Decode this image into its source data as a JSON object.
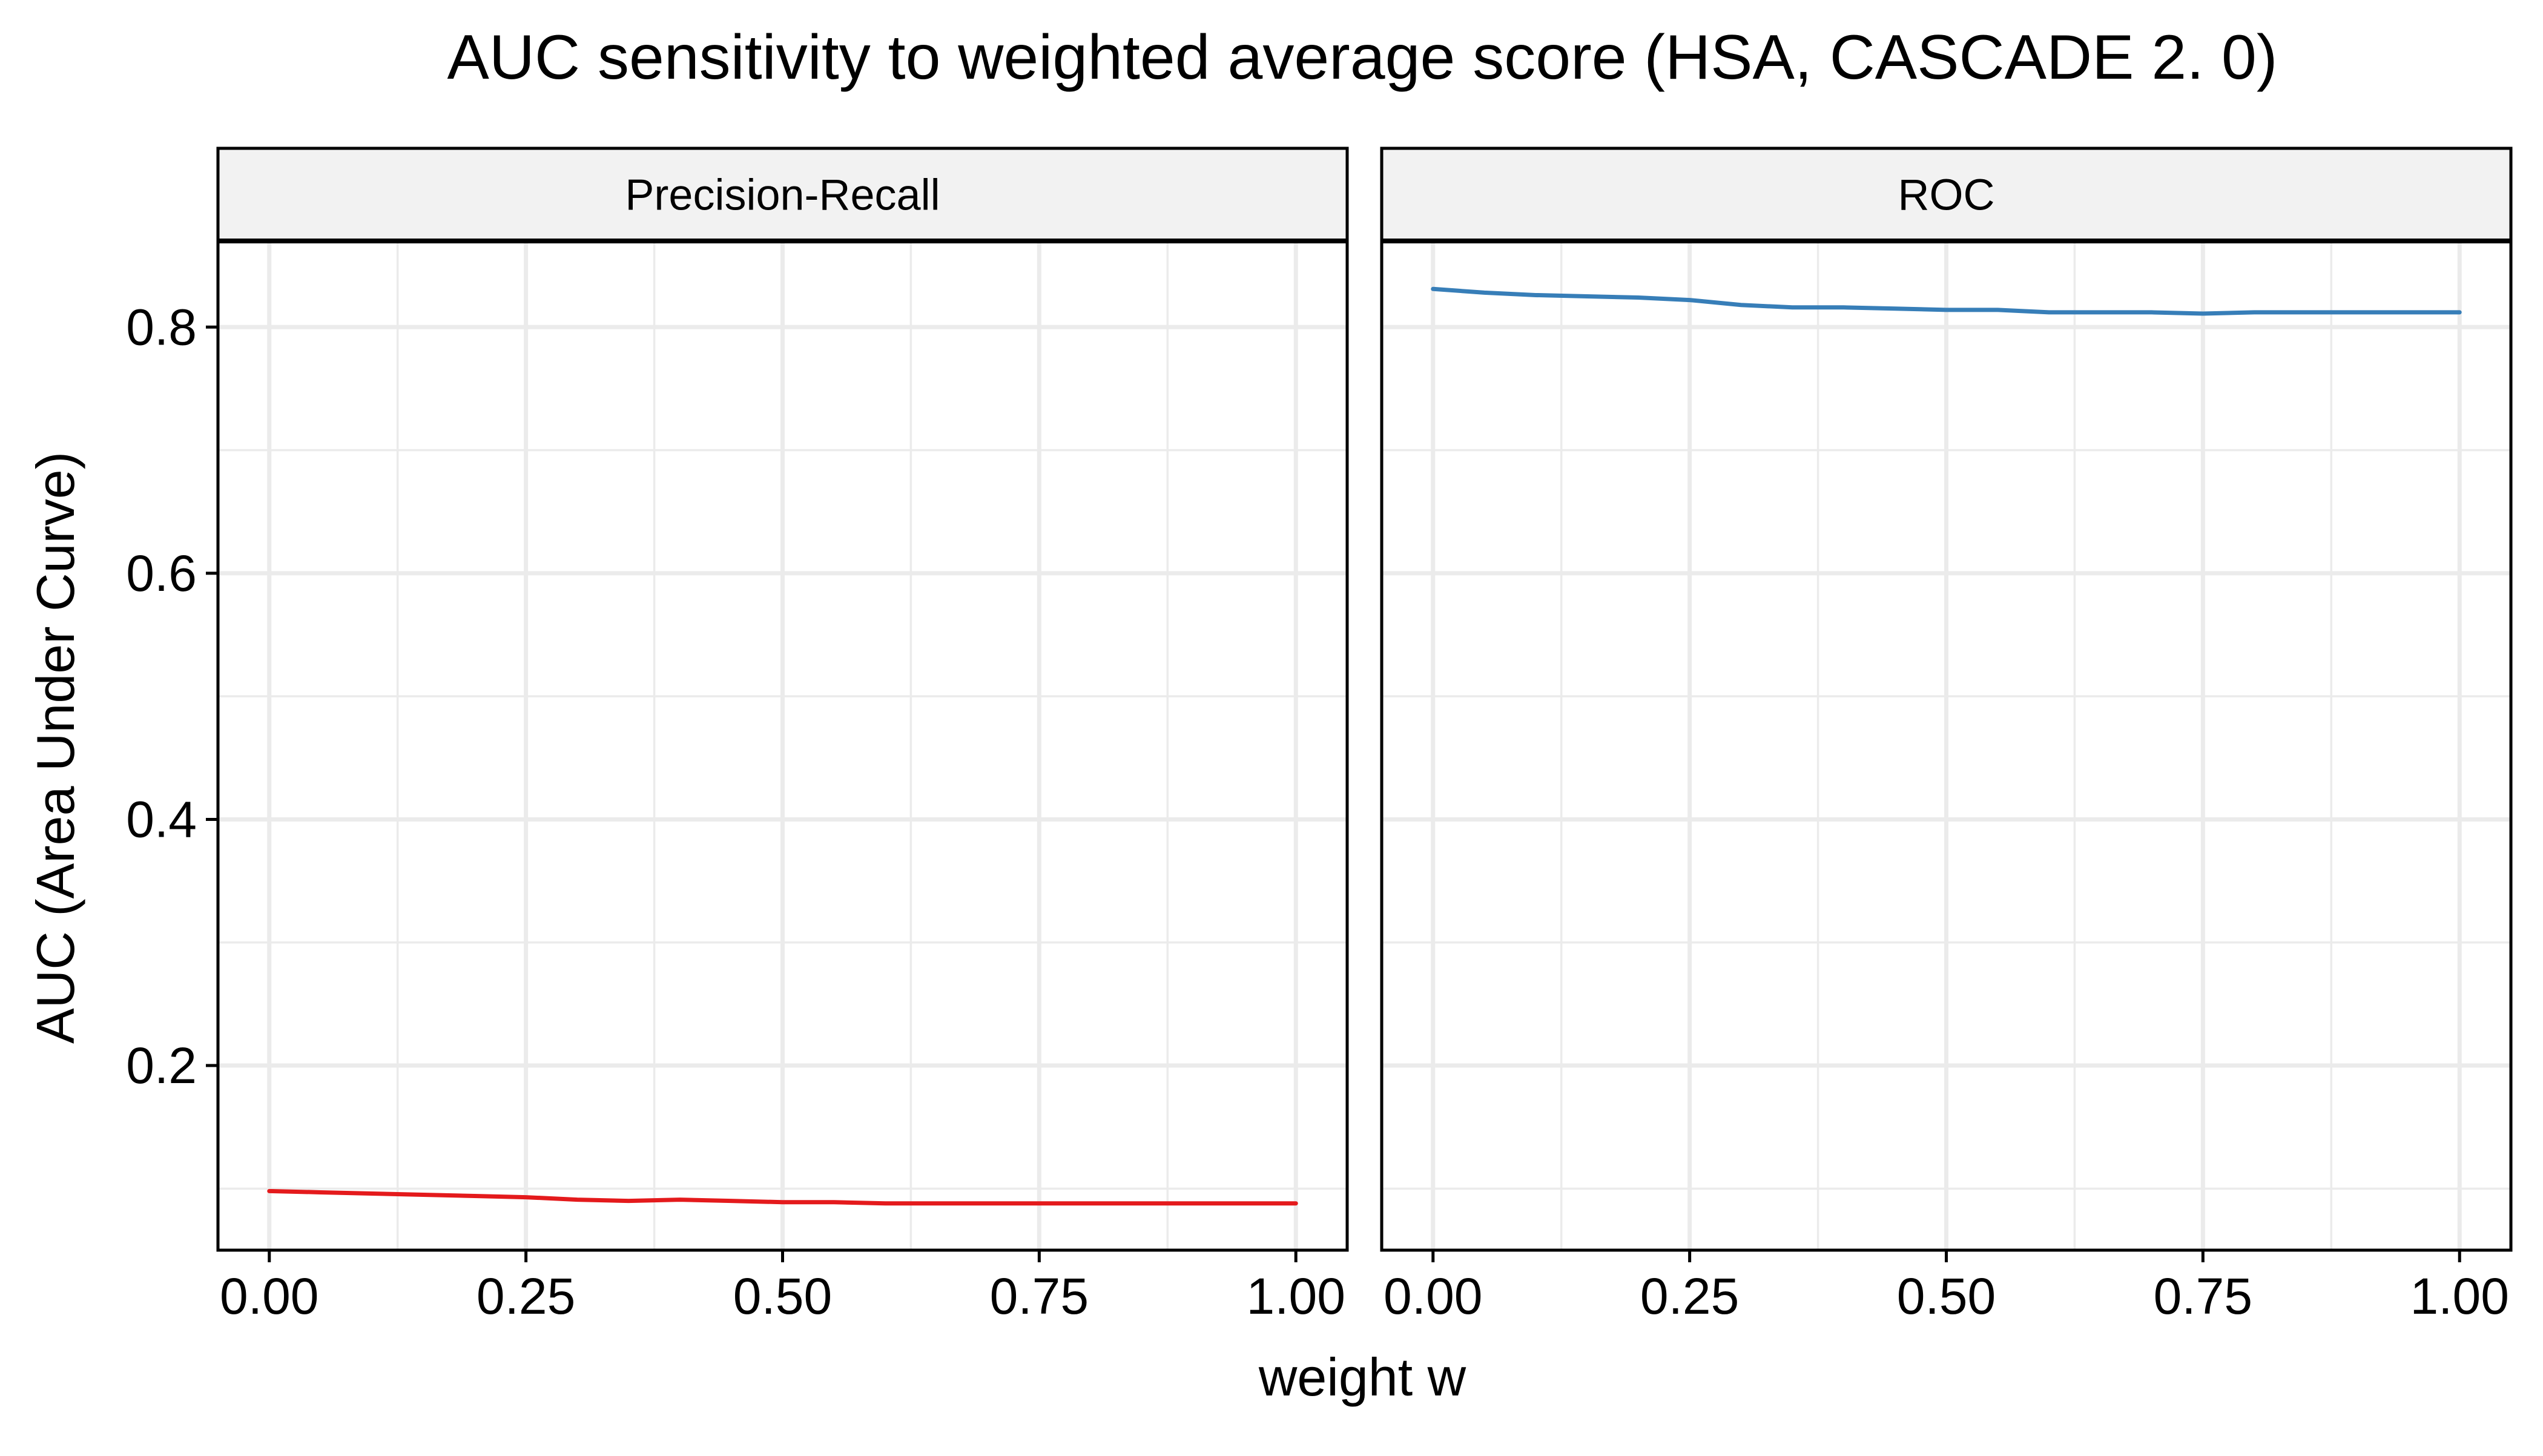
{
  "chart_data": {
    "type": "line",
    "title": "AUC sensitivity to weighted average score (HSA, CASCADE 2. 0)",
    "xlabel": "weight w",
    "ylabel": "AUC (Area Under Curve)",
    "xlim": [
      -0.05,
      1.05
    ],
    "ylim": [
      0.05,
      0.87
    ],
    "x_ticks": [
      0.0,
      0.25,
      0.5,
      0.75,
      1.0
    ],
    "x_tick_labels": [
      "0.00",
      "0.25",
      "0.50",
      "0.75",
      "1.00"
    ],
    "y_ticks": [
      0.2,
      0.4,
      0.6,
      0.8
    ],
    "y_tick_labels": [
      "0.2",
      "0.4",
      "0.6",
      "0.8"
    ],
    "grid": true,
    "legend": "none",
    "panels": [
      {
        "label": "Precision-Recall",
        "color": "#e41a1c",
        "x": [
          0.0,
          0.05,
          0.1,
          0.15,
          0.2,
          0.25,
          0.3,
          0.35,
          0.4,
          0.45,
          0.5,
          0.55,
          0.6,
          0.65,
          0.7,
          0.75,
          0.8,
          0.85,
          0.9,
          0.95,
          1.0
        ],
        "values": [
          0.098,
          0.097,
          0.096,
          0.095,
          0.094,
          0.093,
          0.091,
          0.09,
          0.091,
          0.09,
          0.089,
          0.089,
          0.088,
          0.088,
          0.088,
          0.088,
          0.088,
          0.088,
          0.088,
          0.088,
          0.088
        ]
      },
      {
        "label": "ROC",
        "color": "#377eb8",
        "x": [
          0.0,
          0.05,
          0.1,
          0.15,
          0.2,
          0.25,
          0.3,
          0.35,
          0.4,
          0.45,
          0.5,
          0.55,
          0.6,
          0.65,
          0.7,
          0.75,
          0.8,
          0.85,
          0.9,
          0.95,
          1.0
        ],
        "values": [
          0.831,
          0.828,
          0.826,
          0.825,
          0.824,
          0.822,
          0.818,
          0.816,
          0.816,
          0.815,
          0.814,
          0.814,
          0.812,
          0.812,
          0.812,
          0.811,
          0.812,
          0.812,
          0.812,
          0.812,
          0.812
        ]
      }
    ]
  }
}
